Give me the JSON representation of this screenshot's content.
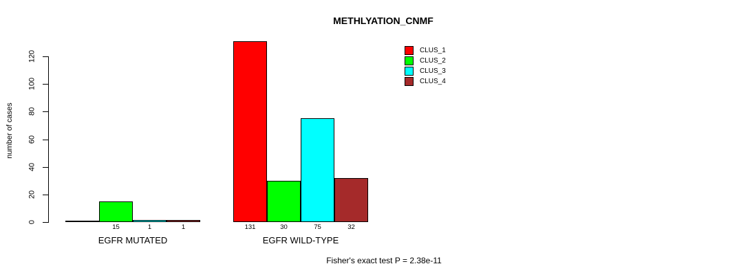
{
  "chart_data": {
    "type": "bar",
    "title": "METHLYATION_CNMF",
    "ylabel": "number of cases",
    "xlabel": "",
    "categories": [
      "EGFR MUTATED",
      "EGFR WILD-TYPE"
    ],
    "series": [
      {
        "name": "CLUS_1",
        "color": "#FF0000",
        "values": [
          0,
          131
        ]
      },
      {
        "name": "CLUS_2",
        "color": "#00FF00",
        "values": [
          15,
          30
        ]
      },
      {
        "name": "CLUS_3",
        "color": "#00FFFF",
        "values": [
          1,
          75
        ]
      },
      {
        "name": "CLUS_4",
        "color": "#A52A2A",
        "values": [
          1,
          32
        ]
      }
    ],
    "bar_labels": [
      [
        "",
        "15",
        "1",
        "1"
      ],
      [
        "131",
        "30",
        "75",
        "32"
      ]
    ],
    "yticks": [
      0,
      20,
      40,
      60,
      80,
      100,
      120
    ],
    "ylim": [
      0,
      131
    ],
    "grid": false,
    "legend_position": "top-right",
    "annotation": "Fisher's exact test P = 2.38e-11",
    "colors": {
      "background": "#ffffff",
      "axis": "#000000",
      "text": "#000000"
    }
  }
}
